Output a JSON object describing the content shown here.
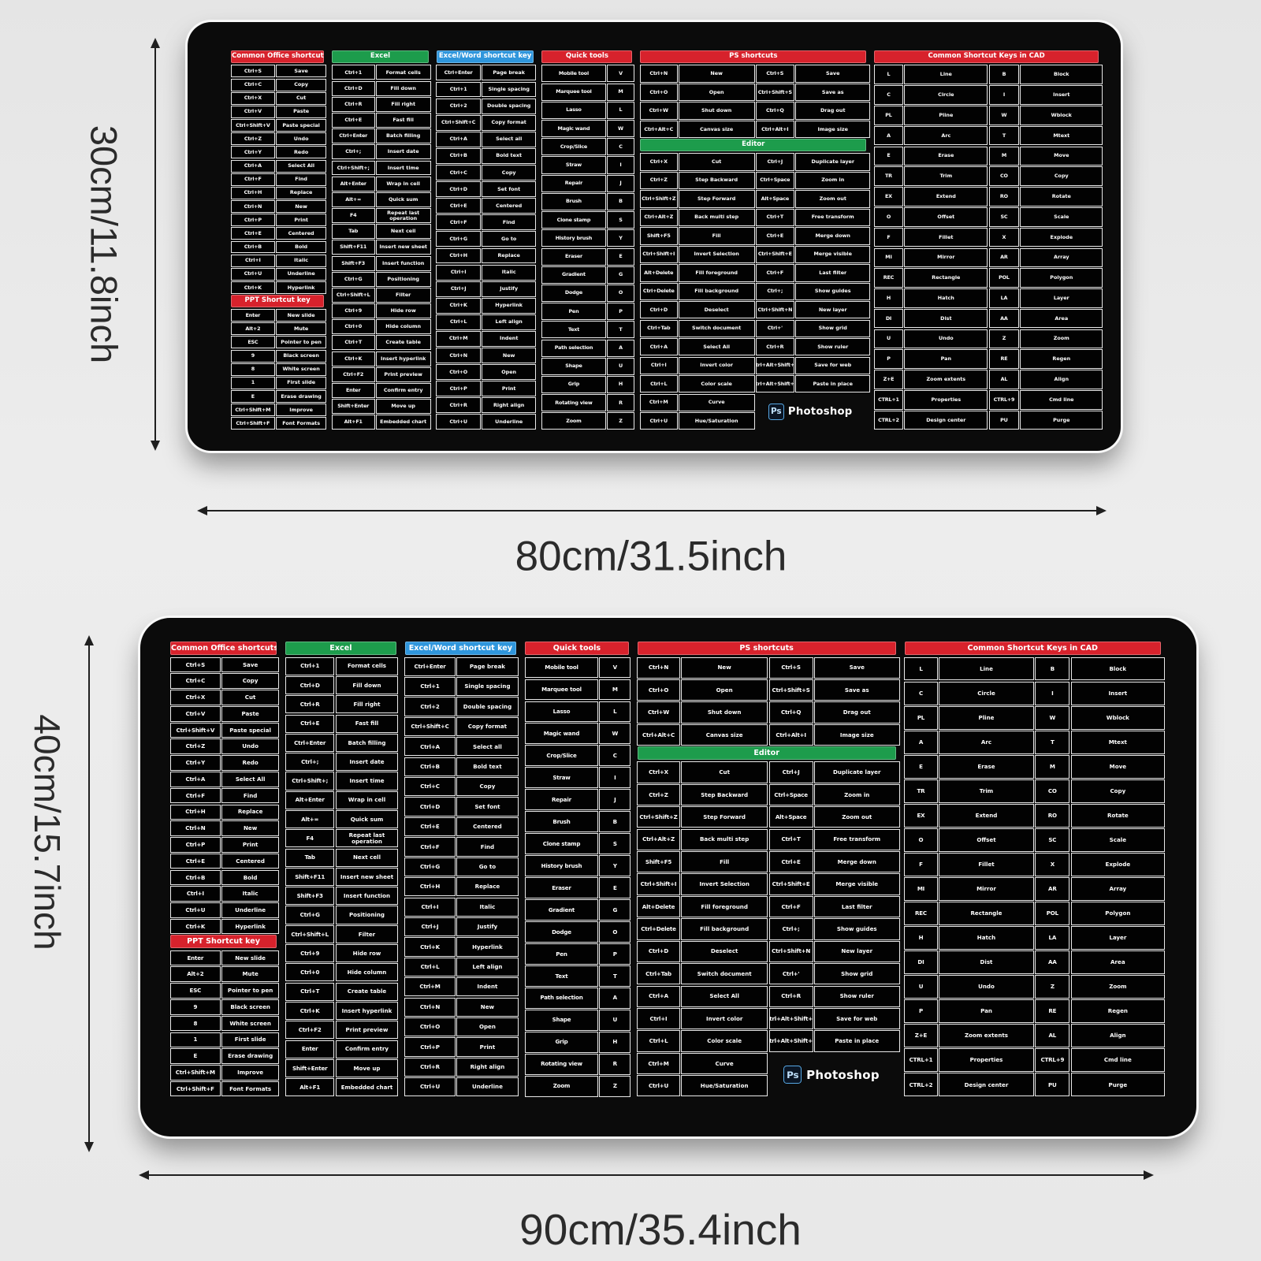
{
  "annotations": {
    "top_pad": {
      "height_label": "30cm/11.8inch",
      "width_label": "80cm/31.5inch"
    },
    "bottom_pad": {
      "height_label": "40cm/15.7inch",
      "width_label": "90cm/35.4inch"
    }
  },
  "colors": {
    "background": "#eaeaea",
    "pad": "#0b0b0b",
    "header_red": "#d7222c",
    "header_green": "#1d9c4c",
    "header_blue": "#2f96dc",
    "cell_border": "#e9e9e9",
    "ps_badge_blue": "#57a8e4"
  },
  "pad_content": {
    "office": {
      "title": "Common Office shortcuts",
      "rows": [
        [
          "Ctrl+S",
          "Save"
        ],
        [
          "Ctrl+C",
          "Copy"
        ],
        [
          "Ctrl+X",
          "Cut"
        ],
        [
          "Ctrl+V",
          "Paste"
        ],
        [
          "Ctrl+Shift+V",
          "Paste special"
        ],
        [
          "Ctrl+Z",
          "Undo"
        ],
        [
          "Ctrl+Y",
          "Redo"
        ],
        [
          "Ctrl+A",
          "Select All"
        ],
        [
          "Ctrl+F",
          "Find"
        ],
        [
          "Ctrl+H",
          "Replace"
        ],
        [
          "Ctrl+N",
          "New"
        ],
        [
          "Ctrl+P",
          "Print"
        ],
        [
          "Ctrl+E",
          "Centered"
        ],
        [
          "Ctrl+B",
          "Bold"
        ],
        [
          "Ctrl+I",
          "Italic"
        ],
        [
          "Ctrl+U",
          "Underline"
        ],
        [
          "Ctrl+K",
          "Hyperlink"
        ]
      ],
      "ppt_title": "PPT Shortcut key",
      "ppt_rows": [
        [
          "Enter",
          "New slide"
        ],
        [
          "Alt+2",
          "Mute"
        ],
        [
          "ESC",
          "Pointer to pen"
        ],
        [
          "9",
          "Black screen"
        ],
        [
          "8",
          "White screen"
        ],
        [
          "1",
          "First slide"
        ],
        [
          "E",
          "Erase drawing"
        ],
        [
          "Ctrl+Shift+M",
          "Improve"
        ],
        [
          "Ctrl+Shift+F",
          "Font Formats"
        ]
      ]
    },
    "excel": {
      "title": "Excel",
      "rows": [
        [
          "Ctrl+1",
          "Format cells"
        ],
        [
          "Ctrl+D",
          "Fill down"
        ],
        [
          "Ctrl+R",
          "Fill right"
        ],
        [
          "Ctrl+E",
          "Fast fill"
        ],
        [
          "Ctrl+Enter",
          "Batch filling"
        ],
        [
          "Ctrl+;",
          "Insert date"
        ],
        [
          "Ctrl+Shift+;",
          "Insert time"
        ],
        [
          "Alt+Enter",
          "Wrap in cell"
        ],
        [
          "Alt+=",
          "Quick sum"
        ],
        [
          "F4",
          "Repeat last operation"
        ],
        [
          "Tab",
          "Next cell"
        ],
        [
          "Shift+F11",
          "Insert new sheet"
        ],
        [
          "Shift+F3",
          "Insert function"
        ],
        [
          "Ctrl+G",
          "Positioning"
        ],
        [
          "Ctrl+Shift+L",
          "Filter"
        ],
        [
          "Ctrl+9",
          "Hide row"
        ],
        [
          "Ctrl+0",
          "Hide column"
        ],
        [
          "Ctrl+T",
          "Create table"
        ],
        [
          "Ctrl+K",
          "Insert hyperlink"
        ],
        [
          "Ctrl+F2",
          "Print preview"
        ],
        [
          "Enter",
          "Confirm entry"
        ],
        [
          "Shift+Enter",
          "Move up"
        ],
        [
          "Alt+F1",
          "Embedded chart"
        ]
      ]
    },
    "word": {
      "title": "Excel/Word shortcut key",
      "rows": [
        [
          "Ctrl+Enter",
          "Page break"
        ],
        [
          "Ctrl+1",
          "Single spacing"
        ],
        [
          "Ctrl+2",
          "Double spacing"
        ],
        [
          "Ctrl+Shift+C",
          "Copy format"
        ],
        [
          "Ctrl+A",
          "Select all"
        ],
        [
          "Ctrl+B",
          "Bold text"
        ],
        [
          "Ctrl+C",
          "Copy"
        ],
        [
          "Ctrl+D",
          "Set font"
        ],
        [
          "Ctrl+E",
          "Centered"
        ],
        [
          "Ctrl+F",
          "Find"
        ],
        [
          "Ctrl+G",
          "Go to"
        ],
        [
          "Ctrl+H",
          "Replace"
        ],
        [
          "Ctrl+I",
          "Italic"
        ],
        [
          "Ctrl+J",
          "Justify"
        ],
        [
          "Ctrl+K",
          "Hyperlink"
        ],
        [
          "Ctrl+L",
          "Left align"
        ],
        [
          "Ctrl+M",
          "Indent"
        ],
        [
          "Ctrl+N",
          "New"
        ],
        [
          "Ctrl+O",
          "Open"
        ],
        [
          "Ctrl+P",
          "Print"
        ],
        [
          "Ctrl+R",
          "Right align"
        ],
        [
          "Ctrl+U",
          "Underline"
        ]
      ]
    },
    "tools": {
      "title": "Quick tools",
      "rows": [
        [
          "Mobile tool",
          "V"
        ],
        [
          "Marquee tool",
          "M"
        ],
        [
          "Lasso",
          "L"
        ],
        [
          "Magic wand",
          "W"
        ],
        [
          "Crop/Slice",
          "C"
        ],
        [
          "Straw",
          "I"
        ],
        [
          "Repair",
          "J"
        ],
        [
          "Brush",
          "B"
        ],
        [
          "Clone stamp",
          "S"
        ],
        [
          "History brush",
          "Y"
        ],
        [
          "Eraser",
          "E"
        ],
        [
          "Gradient",
          "G"
        ],
        [
          "Dodge",
          "O"
        ],
        [
          "Pen",
          "P"
        ],
        [
          "Text",
          "T"
        ],
        [
          "Path selection",
          "A"
        ],
        [
          "Shape",
          "U"
        ],
        [
          "Grip",
          "H"
        ],
        [
          "Rotating view",
          "R"
        ],
        [
          "Zoom",
          "Z"
        ]
      ]
    },
    "ps": {
      "title": "PS shortcuts",
      "top_rows": [
        [
          "Ctrl+N",
          "New",
          "Ctrl+S",
          "Save"
        ],
        [
          "Ctrl+O",
          "Open",
          "Ctrl+Shift+S",
          "Save as"
        ],
        [
          "Ctrl+W",
          "Shut down",
          "Ctrl+Q",
          "Drag out"
        ],
        [
          "Ctrl+Alt+C",
          "Canvas size",
          "Ctrl+Alt+I",
          "Image size"
        ]
      ],
      "editor_title": "Editor",
      "editor_rows": [
        [
          "Ctrl+X",
          "Cut",
          "Ctrl+J",
          "Duplicate layer"
        ],
        [
          "Ctrl+Z",
          "Step Backward",
          "Ctrl+Space",
          "Zoom in"
        ],
        [
          "Ctrl+Shift+Z",
          "Step Forward",
          "Alt+Space",
          "Zoom out"
        ],
        [
          "Ctrl+Alt+Z",
          "Back multi step",
          "Ctrl+T",
          "Free transform"
        ],
        [
          "Shift+F5",
          "Fill",
          "Ctrl+E",
          "Merge down"
        ],
        [
          "Ctrl+Shift+I",
          "Invert Selection",
          "Ctrl+Shift+E",
          "Merge visible"
        ],
        [
          "Alt+Delete",
          "Fill foreground",
          "Ctrl+F",
          "Last filter"
        ],
        [
          "Ctrl+Delete",
          "Fill background",
          "Ctrl+;",
          "Show guides"
        ],
        [
          "Ctrl+D",
          "Deselect",
          "Ctrl+Shift+N",
          "New layer"
        ],
        [
          "Ctrl+Tab",
          "Switch document",
          "Ctrl+'",
          "Show grid"
        ],
        [
          "Ctrl+A",
          "Select All",
          "Ctrl+R",
          "Show ruler"
        ],
        [
          "Ctrl+I",
          "Invert color",
          "Ctrl+Alt+Shift+S",
          "Save for web"
        ],
        [
          "Ctrl+L",
          "Color scale",
          "Ctrl+Alt+Shift+V",
          "Paste in place"
        ]
      ],
      "editor_tail_rows": [
        [
          "Ctrl+M",
          "Curve"
        ],
        [
          "Ctrl+U",
          "Hue/Saturation"
        ]
      ],
      "logo": {
        "badge": "Ps",
        "name": "Photoshop"
      }
    },
    "cad": {
      "title": "Common Shortcut Keys in CAD",
      "rows": [
        [
          "L",
          "Line",
          "B",
          "Block"
        ],
        [
          "C",
          "Circle",
          "I",
          "Insert"
        ],
        [
          "PL",
          "Pline",
          "W",
          "Wblock"
        ],
        [
          "A",
          "Arc",
          "T",
          "Mtext"
        ],
        [
          "E",
          "Erase",
          "M",
          "Move"
        ],
        [
          "TR",
          "Trim",
          "CO",
          "Copy"
        ],
        [
          "EX",
          "Extend",
          "RO",
          "Rotate"
        ],
        [
          "O",
          "Offset",
          "SC",
          "Scale"
        ],
        [
          "F",
          "Fillet",
          "X",
          "Explode"
        ],
        [
          "MI",
          "Mirror",
          "AR",
          "Array"
        ],
        [
          "REC",
          "Rectangle",
          "POL",
          "Polygon"
        ],
        [
          "H",
          "Hatch",
          "LA",
          "Layer"
        ],
        [
          "DI",
          "Dist",
          "AA",
          "Area"
        ],
        [
          "U",
          "Undo",
          "Z",
          "Zoom"
        ],
        [
          "P",
          "Pan",
          "RE",
          "Regen"
        ],
        [
          "Z+E",
          "Zoom extents",
          "AL",
          "Align"
        ],
        [
          "CTRL+1",
          "Properties",
          "CTRL+9",
          "Cmd line"
        ],
        [
          "CTRL+2",
          "Design center",
          "PU",
          "Purge"
        ]
      ]
    }
  }
}
